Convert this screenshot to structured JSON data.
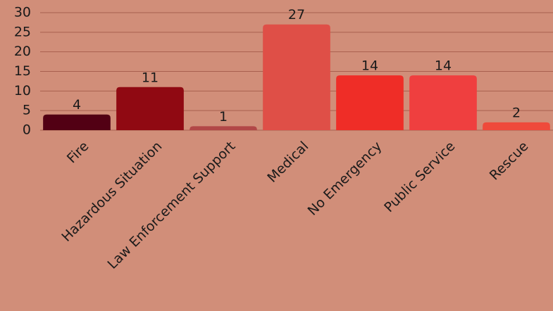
{
  "chart_data": {
    "type": "bar",
    "categories": [
      "Fire",
      "Hazardous Situation",
      "Law Enforcement Support",
      "Medical",
      "No Emergency",
      "Public Service",
      "Rescue"
    ],
    "values": [
      4,
      11,
      1,
      27,
      14,
      14,
      2
    ],
    "colors": [
      "#520014",
      "#900912",
      "#b24747",
      "#df4f47",
      "#ef2d27",
      "#ef3f3f",
      "#ef4a3b"
    ],
    "ylim": [
      0,
      30
    ],
    "yticks": [
      0,
      5,
      10,
      15,
      20,
      25,
      30
    ],
    "grid": true
  }
}
